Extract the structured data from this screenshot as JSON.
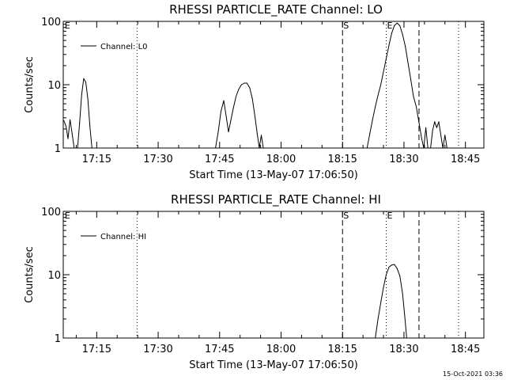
{
  "chart_data": [
    {
      "type": "line",
      "title": "RHESSI PARTICLE_RATE Channel: LO",
      "xlabel": "Start Time (13-May-07 17:06:50)",
      "ylabel": "Counts/sec",
      "yscale": "log",
      "xlim": [
        "17:06:50",
        "18:49:30"
      ],
      "ylim": [
        1,
        100
      ],
      "xticks": [
        "17:15",
        "17:30",
        "17:45",
        "18:00",
        "18:15",
        "18:30",
        "18:45"
      ],
      "yticks": [
        "1",
        "10",
        "100"
      ],
      "legend": "top-left",
      "grid": false,
      "series": [
        {
          "name": "Channel: L0",
          "color": "#000000",
          "points": [
            [
              "17:07:00",
              2.7
            ],
            [
              "17:07:30",
              2.2
            ],
            [
              "17:08:00",
              1.4
            ],
            [
              "17:08:30",
              2.8
            ],
            [
              "17:09:00",
              1.7
            ],
            [
              "17:09:30",
              1.0
            ],
            [
              "17:10:20",
              1.0
            ],
            [
              "17:10:50",
              2.5
            ],
            [
              "17:11:20",
              7.0
            ],
            [
              "17:11:50",
              12.5
            ],
            [
              "17:12:20",
              11.0
            ],
            [
              "17:12:50",
              6.0
            ],
            [
              "17:13:20",
              2.2
            ],
            [
              "17:13:50",
              1.0
            ],
            [
              "17:44:00",
              1.0
            ],
            [
              "17:44:40",
              1.8
            ],
            [
              "17:45:20",
              3.8
            ],
            [
              "17:46:00",
              5.6
            ],
            [
              "17:46:40",
              3.0
            ],
            [
              "17:47:10",
              1.8
            ],
            [
              "17:47:40",
              2.6
            ],
            [
              "17:48:20",
              4.2
            ],
            [
              "17:49:00",
              6.5
            ],
            [
              "17:49:40",
              8.5
            ],
            [
              "17:50:20",
              10.0
            ],
            [
              "17:51:00",
              10.6
            ],
            [
              "17:51:40",
              10.6
            ],
            [
              "17:52:20",
              9.0
            ],
            [
              "17:53:00",
              6.0
            ],
            [
              "17:53:40",
              3.0
            ],
            [
              "17:54:10",
              1.7
            ],
            [
              "17:54:40",
              1.0
            ],
            [
              "17:55:10",
              1.6
            ],
            [
              "17:55:40",
              1.0
            ],
            [
              "18:21:00",
              1.0
            ],
            [
              "18:21:40",
              1.7
            ],
            [
              "18:22:20",
              2.8
            ],
            [
              "18:23:00",
              4.5
            ],
            [
              "18:23:40",
              6.8
            ],
            [
              "18:24:20",
              10.0
            ],
            [
              "18:25:00",
              16.0
            ],
            [
              "18:25:40",
              26.0
            ],
            [
              "18:26:20",
              42.0
            ],
            [
              "18:27:00",
              65.0
            ],
            [
              "18:27:40",
              86.0
            ],
            [
              "18:28:20",
              94.0
            ],
            [
              "18:29:00",
              85.0
            ],
            [
              "18:29:40",
              62.0
            ],
            [
              "18:30:20",
              40.0
            ],
            [
              "18:31:00",
              22.0
            ],
            [
              "18:31:40",
              12.0
            ],
            [
              "18:32:20",
              6.5
            ],
            [
              "18:33:00",
              4.5
            ],
            [
              "18:33:40",
              2.5
            ],
            [
              "18:34:20",
              1.4
            ],
            [
              "18:34:50",
              1.0
            ],
            [
              "18:35:20",
              2.1
            ],
            [
              "18:35:50",
              1.0
            ],
            [
              "18:36:30",
              1.0
            ],
            [
              "18:37:00",
              1.9
            ],
            [
              "18:37:30",
              2.6
            ],
            [
              "18:38:00",
              2.1
            ],
            [
              "18:38:30",
              2.6
            ],
            [
              "18:39:00",
              1.6
            ],
            [
              "18:39:30",
              1.0
            ],
            [
              "18:40:00",
              1.6
            ],
            [
              "18:40:30",
              1.0
            ]
          ]
        }
      ],
      "vertical_lines": [
        {
          "time": "17:24:50",
          "style": "dotted"
        },
        {
          "time": "18:15:00",
          "style": "dashed"
        },
        {
          "time": "18:25:40",
          "style": "dotted"
        },
        {
          "time": "18:33:40",
          "style": "dashed"
        },
        {
          "time": "18:43:20",
          "style": "dotted"
        }
      ],
      "annotations": [
        {
          "text": "E",
          "time": "17:07:00"
        },
        {
          "text": "S",
          "time": "18:15:00"
        },
        {
          "text": "E",
          "time": "18:25:40"
        }
      ]
    },
    {
      "type": "line",
      "title": "RHESSI PARTICLE_RATE Channel: HI",
      "xlabel": "Start Time (13-May-07 17:06:50)",
      "ylabel": "Counts/sec",
      "yscale": "log",
      "xlim": [
        "17:06:50",
        "18:49:30"
      ],
      "ylim": [
        1,
        100
      ],
      "xticks": [
        "17:15",
        "17:30",
        "17:45",
        "18:00",
        "18:15",
        "18:30",
        "18:45"
      ],
      "yticks": [
        "1",
        "10",
        "100"
      ],
      "legend": "top-left",
      "grid": false,
      "series": [
        {
          "name": "Channel: HI",
          "color": "#000000",
          "points": [
            [
              "18:23:00",
              1.0
            ],
            [
              "18:23:40",
              2.0
            ],
            [
              "18:24:20",
              3.6
            ],
            [
              "18:25:00",
              6.3
            ],
            [
              "18:25:40",
              10.0
            ],
            [
              "18:26:20",
              13.2
            ],
            [
              "18:27:00",
              14.2
            ],
            [
              "18:27:40",
              14.5
            ],
            [
              "18:28:20",
              12.5
            ],
            [
              "18:29:00",
              9.5
            ],
            [
              "18:29:40",
              5.0
            ],
            [
              "18:30:10",
              2.3
            ],
            [
              "18:30:40",
              1.0
            ]
          ]
        }
      ],
      "vertical_lines": [
        {
          "time": "17:24:50",
          "style": "dotted"
        },
        {
          "time": "18:15:00",
          "style": "dashed"
        },
        {
          "time": "18:25:40",
          "style": "dotted"
        },
        {
          "time": "18:33:40",
          "style": "dashed"
        },
        {
          "time": "18:43:20",
          "style": "dotted"
        }
      ],
      "annotations": [
        {
          "text": "E",
          "time": "17:07:00"
        },
        {
          "text": "S",
          "time": "18:15:00"
        },
        {
          "text": "E",
          "time": "18:25:40"
        }
      ]
    }
  ],
  "footer": {
    "timestamp": "15-Oct-2021 03:36"
  }
}
